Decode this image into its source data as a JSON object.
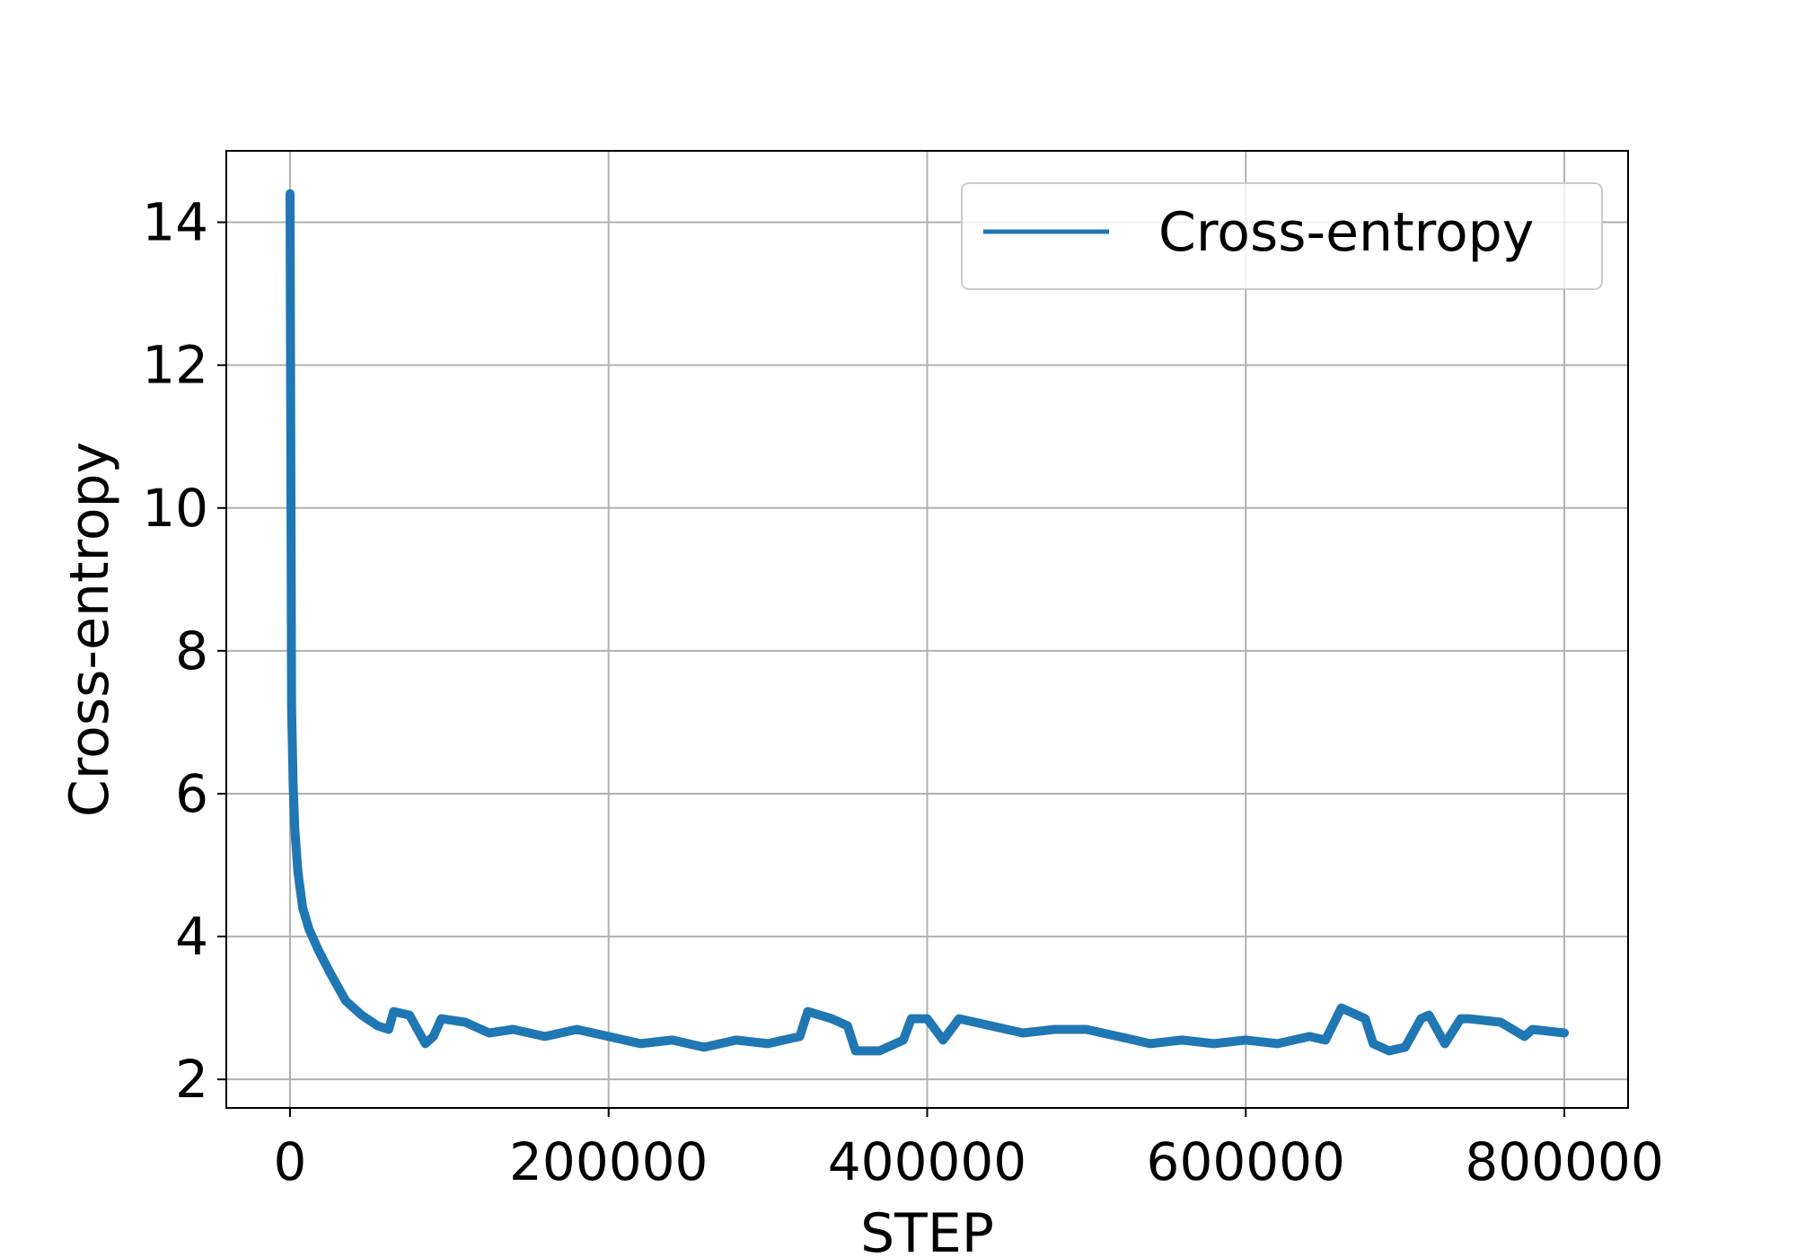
{
  "chart_data": {
    "type": "line",
    "title": "",
    "xlabel": "STEP",
    "ylabel": "Cross-entropy",
    "xlim": [
      -40000,
      840000
    ],
    "ylim": [
      1.6,
      15.0
    ],
    "x_ticks": [
      0,
      200000,
      400000,
      600000,
      800000
    ],
    "x_tick_labels": [
      "0",
      "200000",
      "400000",
      "600000",
      "800000"
    ],
    "y_ticks": [
      2,
      4,
      6,
      8,
      10,
      12,
      14
    ],
    "y_tick_labels": [
      "2",
      "4",
      "6",
      "8",
      "10",
      "12",
      "14"
    ],
    "grid": true,
    "legend_position": "upper right",
    "series": [
      {
        "name": "Cross-entropy",
        "color": "#1f77b4",
        "x": [
          0,
          1000,
          2000,
          3000,
          5000,
          8000,
          12000,
          18000,
          25000,
          35000,
          45000,
          55000,
          62000,
          65000,
          75000,
          85000,
          90000,
          95000,
          110000,
          125000,
          140000,
          160000,
          180000,
          200000,
          220000,
          240000,
          260000,
          280000,
          300000,
          320000,
          325000,
          340000,
          350000,
          355000,
          370000,
          385000,
          390000,
          400000,
          410000,
          420000,
          440000,
          460000,
          480000,
          500000,
          520000,
          540000,
          560000,
          580000,
          600000,
          620000,
          640000,
          650000,
          660000,
          675000,
          680000,
          690000,
          700000,
          710000,
          715000,
          725000,
          735000,
          740000,
          760000,
          775000,
          780000,
          800000
        ],
        "y": [
          14.4,
          7.2,
          6.1,
          5.5,
          4.9,
          4.4,
          4.1,
          3.8,
          3.5,
          3.1,
          2.9,
          2.75,
          2.7,
          2.95,
          2.9,
          2.5,
          2.6,
          2.85,
          2.8,
          2.65,
          2.7,
          2.6,
          2.7,
          2.6,
          2.5,
          2.55,
          2.45,
          2.55,
          2.5,
          2.6,
          2.95,
          2.85,
          2.75,
          2.4,
          2.4,
          2.55,
          2.85,
          2.85,
          2.55,
          2.85,
          2.75,
          2.65,
          2.7,
          2.7,
          2.6,
          2.5,
          2.55,
          2.5,
          2.55,
          2.5,
          2.6,
          2.55,
          3.0,
          2.85,
          2.5,
          2.4,
          2.45,
          2.85,
          2.9,
          2.5,
          2.85,
          2.85,
          2.8,
          2.6,
          2.7,
          2.65
        ]
      }
    ]
  }
}
